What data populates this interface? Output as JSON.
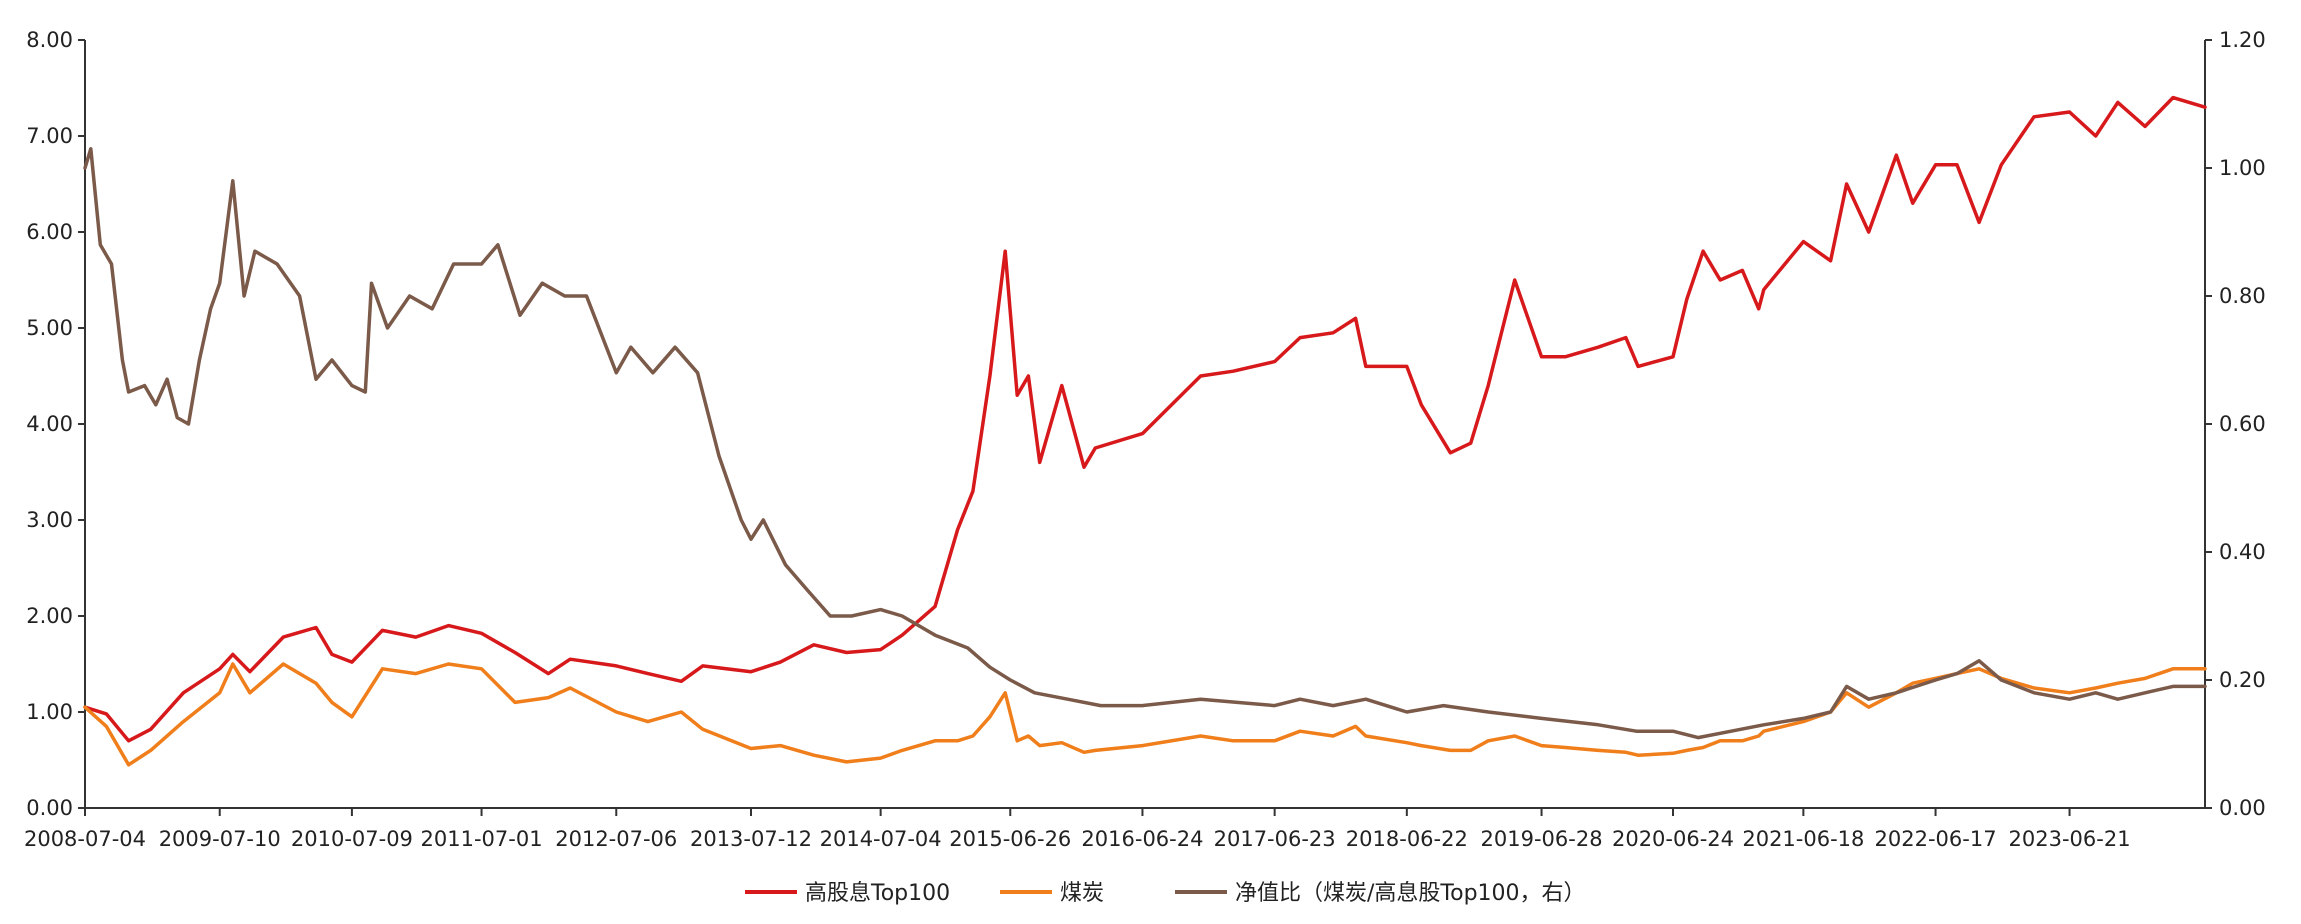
{
  "chart_data": {
    "type": "line",
    "x": [
      "2008-07-04",
      "2009-07-10",
      "2010-07-09",
      "2011-07-01",
      "2012-07-06",
      "2013-07-12",
      "2014-07-04",
      "2015-06-26",
      "2016-06-24",
      "2017-06-23",
      "2018-06-22",
      "2019-06-28",
      "2020-06-24",
      "2021-06-18",
      "2022-06-17",
      "2023-06-21"
    ],
    "x_range": [
      "2008-07-04",
      "2024-06-28"
    ],
    "y_left": {
      "ticks": [
        "0.00",
        "1.00",
        "2.00",
        "3.00",
        "4.00",
        "5.00",
        "6.00",
        "7.00",
        "8.00"
      ],
      "ylim": [
        0,
        8
      ]
    },
    "y_right": {
      "ticks": [
        "0.00",
        "0.20",
        "0.40",
        "0.60",
        "0.80",
        "1.00",
        "1.20"
      ],
      "ylim": [
        0,
        1.2
      ]
    },
    "grid": false,
    "legend_position": "bottom",
    "series": [
      {
        "name": "高股息Top100",
        "axis": "left",
        "color": "#d7191c",
        "points": [
          [
            "2008-07-04",
            1.05
          ],
          [
            "2008-09-01",
            0.98
          ],
          [
            "2008-11-01",
            0.7
          ],
          [
            "2009-01-01",
            0.82
          ],
          [
            "2009-04-01",
            1.2
          ],
          [
            "2009-07-10",
            1.45
          ],
          [
            "2009-08-15",
            1.6
          ],
          [
            "2009-10-01",
            1.42
          ],
          [
            "2010-01-01",
            1.78
          ],
          [
            "2010-04-01",
            1.88
          ],
          [
            "2010-05-15",
            1.6
          ],
          [
            "2010-07-09",
            1.52
          ],
          [
            "2010-10-01",
            1.85
          ],
          [
            "2011-01-01",
            1.78
          ],
          [
            "2011-04-01",
            1.9
          ],
          [
            "2011-07-01",
            1.82
          ],
          [
            "2011-10-01",
            1.62
          ],
          [
            "2012-01-01",
            1.4
          ],
          [
            "2012-03-01",
            1.55
          ],
          [
            "2012-07-06",
            1.48
          ],
          [
            "2012-10-01",
            1.4
          ],
          [
            "2013-01-01",
            1.32
          ],
          [
            "2013-03-01",
            1.48
          ],
          [
            "2013-07-12",
            1.42
          ],
          [
            "2013-10-01",
            1.52
          ],
          [
            "2014-01-01",
            1.7
          ],
          [
            "2014-04-01",
            1.62
          ],
          [
            "2014-07-04",
            1.65
          ],
          [
            "2014-09-01",
            1.8
          ],
          [
            "2014-12-01",
            2.1
          ],
          [
            "2015-02-01",
            2.9
          ],
          [
            "2015-03-15",
            3.3
          ],
          [
            "2015-05-01",
            4.5
          ],
          [
            "2015-06-12",
            5.8
          ],
          [
            "2015-07-15",
            4.3
          ],
          [
            "2015-08-15",
            4.5
          ],
          [
            "2015-09-15",
            3.6
          ],
          [
            "2015-11-15",
            4.4
          ],
          [
            "2016-01-15",
            3.55
          ],
          [
            "2016-02-15",
            3.75
          ],
          [
            "2016-06-24",
            3.9
          ],
          [
            "2016-12-01",
            4.5
          ],
          [
            "2017-03-01",
            4.55
          ],
          [
            "2017-06-23",
            4.65
          ],
          [
            "2017-09-01",
            4.9
          ],
          [
            "2017-12-01",
            4.95
          ],
          [
            "2018-02-01",
            5.1
          ],
          [
            "2018-03-01",
            4.6
          ],
          [
            "2018-06-22",
            4.6
          ],
          [
            "2018-08-01",
            4.2
          ],
          [
            "2018-10-20",
            3.7
          ],
          [
            "2018-12-15",
            3.8
          ],
          [
            "2019-02-01",
            4.4
          ],
          [
            "2019-04-15",
            5.5
          ],
          [
            "2019-06-28",
            4.7
          ],
          [
            "2019-09-01",
            4.7
          ],
          [
            "2019-12-01",
            4.8
          ],
          [
            "2020-02-15",
            4.9
          ],
          [
            "2020-03-20",
            4.6
          ],
          [
            "2020-06-24",
            4.7
          ],
          [
            "2020-08-01",
            5.3
          ],
          [
            "2020-09-15",
            5.8
          ],
          [
            "2020-11-01",
            5.5
          ],
          [
            "2021-01-01",
            5.6
          ],
          [
            "2021-02-15",
            5.2
          ],
          [
            "2021-03-01",
            5.4
          ],
          [
            "2021-06-18",
            5.9
          ],
          [
            "2021-09-01",
            5.7
          ],
          [
            "2021-10-15",
            6.5
          ],
          [
            "2021-12-15",
            6.0
          ],
          [
            "2022-03-01",
            6.8
          ],
          [
            "2022-04-15",
            6.3
          ],
          [
            "2022-06-17",
            6.7
          ],
          [
            "2022-08-15",
            6.7
          ],
          [
            "2022-10-15",
            6.1
          ],
          [
            "2022-12-15",
            6.7
          ],
          [
            "2023-03-15",
            7.2
          ],
          [
            "2023-06-21",
            7.25
          ],
          [
            "2023-09-01",
            7.0
          ],
          [
            "2023-11-01",
            7.35
          ],
          [
            "2024-01-15",
            7.1
          ],
          [
            "2024-04-01",
            7.4
          ],
          [
            "2024-06-28",
            7.3
          ]
        ]
      },
      {
        "name": "煤炭",
        "axis": "left",
        "color": "#f07e1b",
        "points": [
          [
            "2008-07-04",
            1.05
          ],
          [
            "2008-09-01",
            0.85
          ],
          [
            "2008-11-01",
            0.45
          ],
          [
            "2009-01-01",
            0.6
          ],
          [
            "2009-04-01",
            0.9
          ],
          [
            "2009-07-10",
            1.2
          ],
          [
            "2009-08-15",
            1.5
          ],
          [
            "2009-10-01",
            1.2
          ],
          [
            "2010-01-01",
            1.5
          ],
          [
            "2010-04-01",
            1.3
          ],
          [
            "2010-05-15",
            1.1
          ],
          [
            "2010-07-09",
            0.95
          ],
          [
            "2010-10-01",
            1.45
          ],
          [
            "2011-01-01",
            1.4
          ],
          [
            "2011-04-01",
            1.5
          ],
          [
            "2011-07-01",
            1.45
          ],
          [
            "2011-10-01",
            1.1
          ],
          [
            "2012-01-01",
            1.15
          ],
          [
            "2012-03-01",
            1.25
          ],
          [
            "2012-07-06",
            1.0
          ],
          [
            "2012-10-01",
            0.9
          ],
          [
            "2013-01-01",
            1.0
          ],
          [
            "2013-03-01",
            0.82
          ],
          [
            "2013-07-12",
            0.62
          ],
          [
            "2013-10-01",
            0.65
          ],
          [
            "2014-01-01",
            0.55
          ],
          [
            "2014-04-01",
            0.48
          ],
          [
            "2014-07-04",
            0.52
          ],
          [
            "2014-09-01",
            0.6
          ],
          [
            "2014-12-01",
            0.7
          ],
          [
            "2015-02-01",
            0.7
          ],
          [
            "2015-03-15",
            0.75
          ],
          [
            "2015-05-01",
            0.95
          ],
          [
            "2015-06-12",
            1.2
          ],
          [
            "2015-07-15",
            0.7
          ],
          [
            "2015-08-15",
            0.75
          ],
          [
            "2015-09-15",
            0.65
          ],
          [
            "2015-11-15",
            0.68
          ],
          [
            "2016-01-15",
            0.58
          ],
          [
            "2016-02-15",
            0.6
          ],
          [
            "2016-06-24",
            0.65
          ],
          [
            "2016-12-01",
            0.75
          ],
          [
            "2017-03-01",
            0.7
          ],
          [
            "2017-06-23",
            0.7
          ],
          [
            "2017-09-01",
            0.8
          ],
          [
            "2017-12-01",
            0.75
          ],
          [
            "2018-02-01",
            0.85
          ],
          [
            "2018-03-01",
            0.75
          ],
          [
            "2018-06-22",
            0.68
          ],
          [
            "2018-08-01",
            0.65
          ],
          [
            "2018-10-20",
            0.6
          ],
          [
            "2018-12-15",
            0.6
          ],
          [
            "2019-02-01",
            0.7
          ],
          [
            "2019-04-15",
            0.75
          ],
          [
            "2019-06-28",
            0.65
          ],
          [
            "2019-09-01",
            0.63
          ],
          [
            "2019-12-01",
            0.6
          ],
          [
            "2020-02-15",
            0.58
          ],
          [
            "2020-03-20",
            0.55
          ],
          [
            "2020-06-24",
            0.57
          ],
          [
            "2020-08-01",
            0.6
          ],
          [
            "2020-09-15",
            0.63
          ],
          [
            "2020-11-01",
            0.7
          ],
          [
            "2021-01-01",
            0.7
          ],
          [
            "2021-02-15",
            0.75
          ],
          [
            "2021-03-01",
            0.8
          ],
          [
            "2021-06-18",
            0.9
          ],
          [
            "2021-09-01",
            1.0
          ],
          [
            "2021-10-15",
            1.2
          ],
          [
            "2021-12-15",
            1.05
          ],
          [
            "2022-03-01",
            1.2
          ],
          [
            "2022-04-15",
            1.3
          ],
          [
            "2022-06-17",
            1.35
          ],
          [
            "2022-08-15",
            1.4
          ],
          [
            "2022-10-15",
            1.45
          ],
          [
            "2022-12-15",
            1.35
          ],
          [
            "2023-03-15",
            1.25
          ],
          [
            "2023-06-21",
            1.2
          ],
          [
            "2023-09-01",
            1.25
          ],
          [
            "2023-11-01",
            1.3
          ],
          [
            "2024-01-15",
            1.35
          ],
          [
            "2024-04-01",
            1.45
          ],
          [
            "2024-06-28",
            1.45
          ]
        ]
      },
      {
        "name": "净值比（煤炭/高息股Top100，右）",
        "axis": "right",
        "color": "#7b5a4a",
        "points": [
          [
            "2008-07-04",
            1.0
          ],
          [
            "2008-07-20",
            1.03
          ],
          [
            "2008-08-15",
            0.88
          ],
          [
            "2008-09-15",
            0.85
          ],
          [
            "2008-10-15",
            0.7
          ],
          [
            "2008-11-01",
            0.65
          ],
          [
            "2008-12-15",
            0.66
          ],
          [
            "2009-01-15",
            0.63
          ],
          [
            "2009-02-15",
            0.67
          ],
          [
            "2009-03-15",
            0.61
          ],
          [
            "2009-04-15",
            0.6
          ],
          [
            "2009-05-15",
            0.7
          ],
          [
            "2009-06-15",
            0.78
          ],
          [
            "2009-07-10",
            0.82
          ],
          [
            "2009-08-15",
            0.98
          ],
          [
            "2009-09-15",
            0.8
          ],
          [
            "2009-10-15",
            0.87
          ],
          [
            "2009-12-15",
            0.85
          ],
          [
            "2010-02-15",
            0.8
          ],
          [
            "2010-04-01",
            0.67
          ],
          [
            "2010-05-15",
            0.7
          ],
          [
            "2010-07-09",
            0.66
          ],
          [
            "2010-08-15",
            0.65
          ],
          [
            "2010-09-01",
            0.82
          ],
          [
            "2010-10-15",
            0.75
          ],
          [
            "2010-12-15",
            0.8
          ],
          [
            "2011-02-15",
            0.78
          ],
          [
            "2011-04-15",
            0.85
          ],
          [
            "2011-07-01",
            0.85
          ],
          [
            "2011-08-15",
            0.88
          ],
          [
            "2011-10-15",
            0.77
          ],
          [
            "2011-12-15",
            0.82
          ],
          [
            "2012-02-15",
            0.8
          ],
          [
            "2012-04-15",
            0.8
          ],
          [
            "2012-07-06",
            0.68
          ],
          [
            "2012-08-15",
            0.72
          ],
          [
            "2012-10-15",
            0.68
          ],
          [
            "2012-12-15",
            0.72
          ],
          [
            "2013-02-15",
            0.68
          ],
          [
            "2013-04-15",
            0.55
          ],
          [
            "2013-06-15",
            0.45
          ],
          [
            "2013-07-12",
            0.42
          ],
          [
            "2013-08-15",
            0.45
          ],
          [
            "2013-10-15",
            0.38
          ],
          [
            "2013-12-15",
            0.34
          ],
          [
            "2014-02-15",
            0.3
          ],
          [
            "2014-04-15",
            0.3
          ],
          [
            "2014-07-04",
            0.31
          ],
          [
            "2014-09-01",
            0.3
          ],
          [
            "2014-12-01",
            0.27
          ],
          [
            "2015-03-01",
            0.25
          ],
          [
            "2015-05-01",
            0.22
          ],
          [
            "2015-06-26",
            0.2
          ],
          [
            "2015-09-01",
            0.18
          ],
          [
            "2015-12-01",
            0.17
          ],
          [
            "2016-03-01",
            0.16
          ],
          [
            "2016-06-24",
            0.16
          ],
          [
            "2016-12-01",
            0.17
          ],
          [
            "2017-06-23",
            0.16
          ],
          [
            "2017-09-01",
            0.17
          ],
          [
            "2017-12-01",
            0.16
          ],
          [
            "2018-03-01",
            0.17
          ],
          [
            "2018-06-22",
            0.15
          ],
          [
            "2018-10-01",
            0.16
          ],
          [
            "2019-02-01",
            0.15
          ],
          [
            "2019-06-28",
            0.14
          ],
          [
            "2019-12-01",
            0.13
          ],
          [
            "2020-03-15",
            0.12
          ],
          [
            "2020-06-24",
            0.12
          ],
          [
            "2020-09-01",
            0.11
          ],
          [
            "2020-12-01",
            0.12
          ],
          [
            "2021-03-01",
            0.13
          ],
          [
            "2021-06-18",
            0.14
          ],
          [
            "2021-09-01",
            0.15
          ],
          [
            "2021-10-15",
            0.19
          ],
          [
            "2021-12-15",
            0.17
          ],
          [
            "2022-03-01",
            0.18
          ],
          [
            "2022-06-17",
            0.2
          ],
          [
            "2022-08-15",
            0.21
          ],
          [
            "2022-10-15",
            0.23
          ],
          [
            "2022-12-15",
            0.2
          ],
          [
            "2023-03-15",
            0.18
          ],
          [
            "2023-06-21",
            0.17
          ],
          [
            "2023-09-01",
            0.18
          ],
          [
            "2023-11-01",
            0.17
          ],
          [
            "2024-01-15",
            0.18
          ],
          [
            "2024-04-01",
            0.19
          ],
          [
            "2024-06-28",
            0.19
          ]
        ]
      }
    ]
  }
}
